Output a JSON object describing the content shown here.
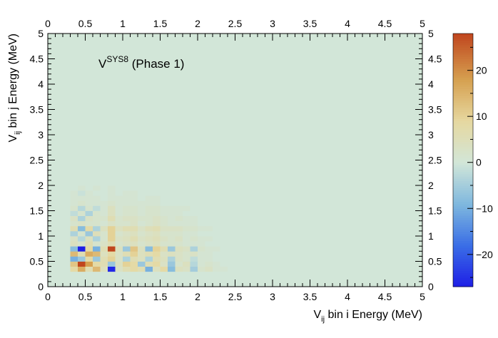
{
  "chart_data": {
    "type": "heatmap",
    "title": "",
    "annotation": {
      "main": "V",
      "sup": "SYS8",
      "rest": " (Phase 1)"
    },
    "xlabel": {
      "main": "V",
      "sub": "ij",
      "rest": " bin i Energy (MeV)"
    },
    "ylabel": {
      "main": "V",
      "sub": "ij",
      "rest": " bin j Energy (MeV)"
    },
    "xlim": [
      0,
      5
    ],
    "ylim": [
      0,
      5
    ],
    "x_ticks": [
      "0",
      "0.5",
      "1",
      "1.5",
      "2",
      "2.5",
      "3",
      "3.5",
      "4",
      "4.5",
      "5"
    ],
    "y_ticks": [
      "0",
      "0.5",
      "1",
      "1.5",
      "2",
      "2.5",
      "3",
      "3.5",
      "4",
      "4.5",
      "5"
    ],
    "zlim": [
      -27,
      28
    ],
    "z_ticks": [
      "20",
      "10",
      "0",
      "−10",
      "−20"
    ],
    "z_tick_values": [
      20,
      10,
      0,
      -10,
      -20
    ],
    "bins": {
      "x_edges": [
        0.3,
        0.4,
        0.5,
        0.6,
        0.7,
        0.8,
        0.9,
        1.0,
        1.1,
        1.2,
        1.3,
        1.4,
        1.5,
        1.6,
        1.7,
        1.8,
        1.9,
        2.0,
        2.1,
        2.2,
        2.3,
        2.4,
        2.5
      ],
      "y_edges": [
        0.3,
        0.4,
        0.5,
        0.6,
        0.7,
        0.8,
        0.9,
        1.0,
        1.1,
        1.2,
        1.3,
        1.4,
        1.5,
        1.6,
        1.7,
        1.8,
        1.9,
        2.0,
        2.1,
        2.2,
        2.3,
        2.4,
        2.5
      ],
      "rows": [
        [
          8,
          16,
          6,
          14,
          4,
          -26,
          3,
          6,
          8,
          6,
          -10,
          4,
          8,
          -8,
          4,
          3,
          -5,
          2,
          3,
          1,
          1,
          0
        ],
        [
          12,
          28,
          18,
          8,
          6,
          -6,
          4,
          10,
          8,
          -6,
          6,
          8,
          3,
          -6,
          2,
          4,
          -3,
          1,
          2,
          1,
          0,
          0
        ],
        [
          -10,
          -6,
          8,
          -6,
          6,
          10,
          3,
          -4,
          6,
          4,
          -4,
          6,
          4,
          -4,
          3,
          2,
          -2,
          1,
          1,
          0,
          0,
          0
        ],
        [
          14,
          6,
          16,
          14,
          4,
          8,
          3,
          6,
          10,
          4,
          6,
          8,
          3,
          4,
          3,
          2,
          3,
          1,
          1,
          0,
          0,
          0
        ],
        [
          -8,
          -28,
          8,
          -10,
          6,
          28,
          4,
          -6,
          12,
          4,
          -8,
          10,
          6,
          -6,
          4,
          3,
          -4,
          2,
          1,
          1,
          0,
          0
        ],
        [
          4,
          2,
          6,
          2,
          3,
          6,
          2,
          3,
          4,
          2,
          3,
          4,
          2,
          2,
          2,
          1,
          1,
          1,
          0,
          0,
          0,
          0
        ],
        [
          3,
          -3,
          4,
          -4,
          2,
          10,
          3,
          4,
          6,
          3,
          4,
          5,
          3,
          2,
          3,
          1,
          2,
          1,
          1,
          0,
          0,
          0
        ],
        [
          -4,
          2,
          -6,
          5,
          2,
          10,
          2,
          3,
          4,
          2,
          3,
          4,
          2,
          2,
          2,
          1,
          1,
          0,
          0,
          0,
          0,
          0
        ],
        [
          6,
          -8,
          8,
          -4,
          4,
          10,
          4,
          6,
          6,
          3,
          5,
          6,
          3,
          3,
          3,
          2,
          2,
          1,
          1,
          0,
          0,
          0
        ],
        [
          2,
          3,
          2,
          2,
          1,
          3,
          2,
          2,
          3,
          1,
          2,
          3,
          2,
          1,
          1,
          1,
          1,
          0,
          0,
          0,
          0,
          0
        ],
        [
          3,
          -4,
          3,
          2,
          2,
          6,
          2,
          3,
          3,
          2,
          2,
          3,
          2,
          1,
          2,
          1,
          1,
          0,
          0,
          0,
          0,
          0
        ],
        [
          -2,
          2,
          -4,
          2,
          1,
          4,
          1,
          2,
          2,
          1,
          2,
          2,
          1,
          1,
          1,
          0,
          0,
          0,
          0,
          0,
          0,
          0
        ],
        [
          2,
          -3,
          2,
          -2,
          1,
          4,
          1,
          2,
          2,
          1,
          2,
          2,
          1,
          1,
          1,
          1,
          0,
          0,
          0,
          0,
          0,
          0
        ],
        [
          1,
          2,
          1,
          1,
          1,
          2,
          1,
          1,
          1,
          1,
          1,
          1,
          0,
          0,
          0,
          0,
          0,
          0,
          0,
          0,
          0,
          0
        ],
        [
          1,
          1,
          1,
          1,
          0,
          1,
          1,
          1,
          1,
          0,
          1,
          1,
          0,
          0,
          0,
          0,
          0,
          0,
          0,
          0,
          0,
          0
        ],
        [
          1,
          -1,
          1,
          0,
          0,
          1,
          0,
          1,
          1,
          0,
          0,
          0,
          0,
          0,
          0,
          0,
          0,
          0,
          0,
          0,
          0,
          0
        ],
        [
          0,
          1,
          0,
          1,
          0,
          1,
          0,
          0,
          0,
          0,
          0,
          0,
          0,
          0,
          0,
          0,
          0,
          0,
          0,
          0,
          0,
          0
        ],
        [
          0,
          0,
          0,
          0,
          0,
          0,
          0,
          0,
          0,
          0,
          0,
          0,
          0,
          0,
          0,
          0,
          0,
          0,
          0,
          0,
          0,
          0
        ],
        [
          0,
          0,
          0,
          0,
          0,
          0,
          0,
          0,
          0,
          0,
          0,
          0,
          0,
          0,
          0,
          0,
          0,
          0,
          0,
          0,
          0,
          0
        ],
        [
          0,
          0,
          0,
          0,
          0,
          0,
          0,
          0,
          0,
          0,
          0,
          0,
          0,
          0,
          0,
          0,
          0,
          0,
          0,
          0,
          0,
          0
        ],
        [
          0,
          0,
          0,
          0,
          0,
          0,
          0,
          0,
          0,
          0,
          0,
          0,
          0,
          0,
          0,
          0,
          0,
          0,
          0,
          0,
          0,
          0
        ],
        [
          0,
          0,
          0,
          0,
          0,
          0,
          0,
          0,
          0,
          0,
          0,
          0,
          0,
          0,
          0,
          0,
          0,
          0,
          0,
          0,
          0,
          0
        ]
      ]
    },
    "colormap": {
      "stops": [
        {
          "value": -27,
          "color": "#1e1ee6"
        },
        {
          "value": -18,
          "color": "#3a6ee6"
        },
        {
          "value": -9,
          "color": "#7fb8de"
        },
        {
          "value": 0,
          "color": "#d2e6d8"
        },
        {
          "value": 9,
          "color": "#e6d8a0"
        },
        {
          "value": 18,
          "color": "#d6a050"
        },
        {
          "value": 28,
          "color": "#c0461e"
        }
      ]
    }
  }
}
